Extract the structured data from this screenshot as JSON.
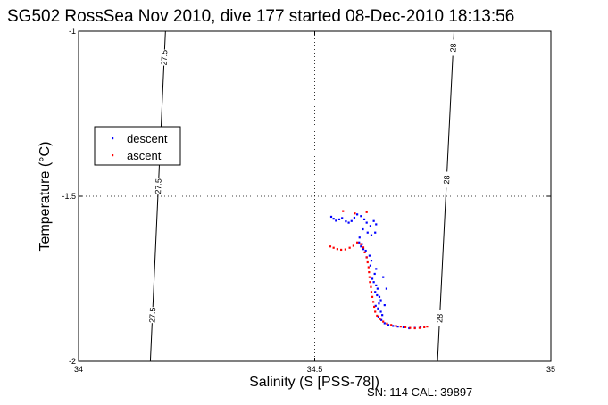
{
  "chart_data": {
    "type": "scatter",
    "title": "SG502 RossSea Nov 2010, dive 177 started 08-Dec-2010 18:13:56",
    "xlabel": "Salinity (S [PSS-78])",
    "ylabel": "Temperature (°C)",
    "xlim": [
      34,
      35
    ],
    "ylim": [
      -2,
      -1
    ],
    "x_ticks": [
      "34",
      "34.5",
      "35"
    ],
    "y_ticks": [
      "-1",
      "-1.5",
      "-2"
    ],
    "grid": "dotted",
    "legend": "left",
    "colors": {
      "descent": "#0000ff",
      "ascent": "#ff0000",
      "isopycnal": "#000000"
    },
    "isopycnals": [
      {
        "label": "27.5",
        "x_top": 34.184,
        "x_bottom": 34.152,
        "labels_at": [
          -1.08,
          -1.47,
          -1.86
        ]
      },
      {
        "label": "28",
        "x_top": 34.795,
        "x_bottom": 34.76,
        "labels_at": [
          -1.05,
          -1.45,
          -1.87
        ]
      }
    ],
    "series": [
      {
        "name": "descent",
        "points": [
          [
            34.535,
            -1.562
          ],
          [
            34.54,
            -1.568
          ],
          [
            34.545,
            -1.574
          ],
          [
            34.552,
            -1.57
          ],
          [
            34.558,
            -1.566
          ],
          [
            34.566,
            -1.576
          ],
          [
            34.572,
            -1.58
          ],
          [
            34.578,
            -1.575
          ],
          [
            34.584,
            -1.565
          ],
          [
            34.59,
            -1.555
          ],
          [
            34.598,
            -1.56
          ],
          [
            34.605,
            -1.57
          ],
          [
            34.61,
            -1.58
          ],
          [
            34.618,
            -1.59
          ],
          [
            34.625,
            -1.575
          ],
          [
            34.63,
            -1.585
          ],
          [
            34.628,
            -1.61
          ],
          [
            34.62,
            -1.618
          ],
          [
            34.612,
            -1.61
          ],
          [
            34.602,
            -1.6
          ],
          [
            34.595,
            -1.625
          ],
          [
            34.594,
            -1.64
          ],
          [
            34.598,
            -1.652
          ],
          [
            34.603,
            -1.66
          ],
          [
            34.608,
            -1.665
          ],
          [
            34.616,
            -1.68
          ],
          [
            34.62,
            -1.695
          ],
          [
            34.618,
            -1.71
          ],
          [
            34.63,
            -1.72
          ],
          [
            34.627,
            -1.735
          ],
          [
            34.622,
            -1.75
          ],
          [
            34.625,
            -1.76
          ],
          [
            34.63,
            -1.77
          ],
          [
            34.633,
            -1.78
          ],
          [
            34.628,
            -1.79
          ],
          [
            34.632,
            -1.8
          ],
          [
            34.637,
            -1.805
          ],
          [
            34.64,
            -1.815
          ],
          [
            34.636,
            -1.825
          ],
          [
            34.629,
            -1.832
          ],
          [
            34.634,
            -1.84
          ],
          [
            34.64,
            -1.85
          ],
          [
            34.643,
            -1.86
          ],
          [
            34.635,
            -1.865
          ],
          [
            34.641,
            -1.875
          ],
          [
            34.648,
            -1.885
          ],
          [
            34.656,
            -1.89
          ],
          [
            34.666,
            -1.893
          ],
          [
            34.676,
            -1.895
          ],
          [
            34.688,
            -1.897
          ],
          [
            34.7,
            -1.9
          ],
          [
            34.712,
            -1.899
          ],
          [
            34.724,
            -1.896
          ],
          [
            34.648,
            -1.83
          ],
          [
            34.652,
            -1.78
          ],
          [
            34.645,
            -1.745
          ],
          [
            34.61,
            -1.685
          ],
          [
            34.6,
            -1.645
          ]
        ]
      },
      {
        "name": "ascent",
        "points": [
          [
            34.533,
            -1.652
          ],
          [
            34.54,
            -1.656
          ],
          [
            34.548,
            -1.66
          ],
          [
            34.556,
            -1.662
          ],
          [
            34.565,
            -1.661
          ],
          [
            34.574,
            -1.656
          ],
          [
            34.582,
            -1.65
          ],
          [
            34.59,
            -1.64
          ],
          [
            34.598,
            -1.645
          ],
          [
            34.603,
            -1.655
          ],
          [
            34.606,
            -1.67
          ],
          [
            34.61,
            -1.685
          ],
          [
            34.612,
            -1.7
          ],
          [
            34.614,
            -1.715
          ],
          [
            34.615,
            -1.73
          ],
          [
            34.616,
            -1.745
          ],
          [
            34.617,
            -1.76
          ],
          [
            34.619,
            -1.775
          ],
          [
            34.62,
            -1.79
          ],
          [
            34.622,
            -1.805
          ],
          [
            34.624,
            -1.82
          ],
          [
            34.626,
            -1.835
          ],
          [
            34.628,
            -1.85
          ],
          [
            34.632,
            -1.862
          ],
          [
            34.638,
            -1.872
          ],
          [
            34.645,
            -1.88
          ],
          [
            34.653,
            -1.886
          ],
          [
            34.662,
            -1.89
          ],
          [
            34.672,
            -1.893
          ],
          [
            34.682,
            -1.895
          ],
          [
            34.692,
            -1.897
          ],
          [
            34.702,
            -1.899
          ],
          [
            34.712,
            -1.9
          ],
          [
            34.722,
            -1.899
          ],
          [
            34.732,
            -1.897
          ],
          [
            34.738,
            -1.895
          ],
          [
            34.56,
            -1.545
          ],
          [
            34.585,
            -1.552
          ],
          [
            34.61,
            -1.548
          ]
        ]
      }
    ],
    "footer": "SN: 114  CAL: 39897"
  }
}
